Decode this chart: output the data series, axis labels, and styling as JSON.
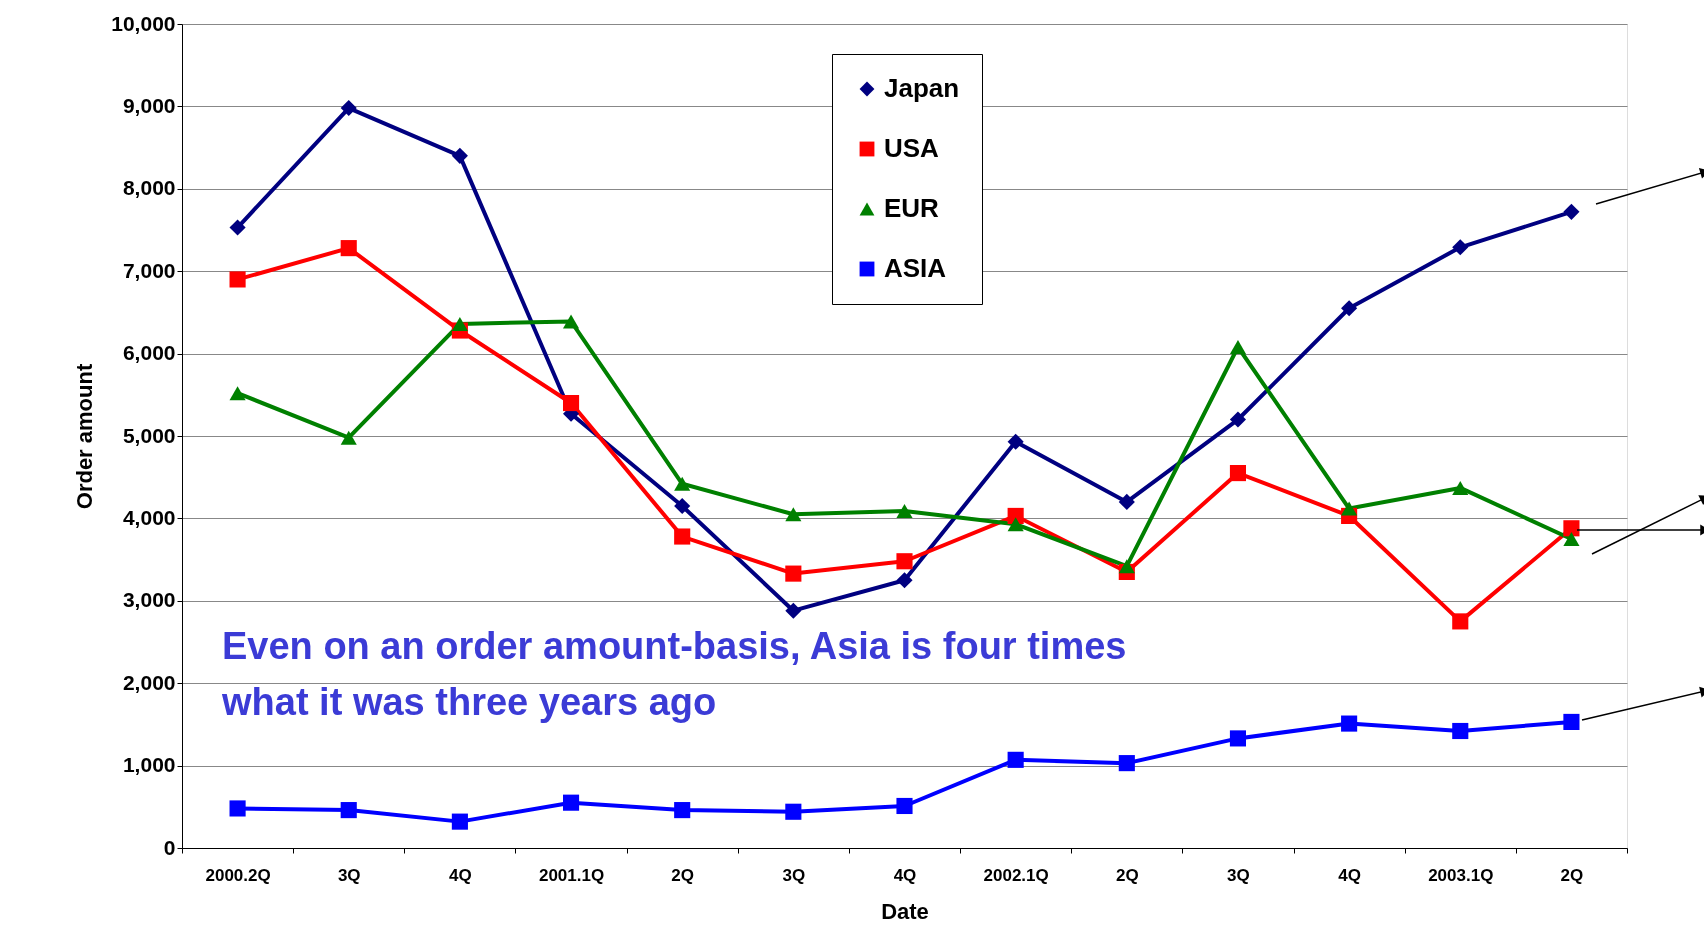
{
  "chart_data": {
    "type": "line",
    "xlabel": "Date",
    "ylabel": "Order amount",
    "categories": [
      "2000.2Q",
      "3Q",
      "4Q",
      "2001.1Q",
      "2Q",
      "3Q",
      "4Q",
      "2002.1Q",
      "2Q",
      "3Q",
      "4Q",
      "2003.1Q",
      "2Q"
    ],
    "series": [
      {
        "name": "Japan",
        "color": "#000080",
        "marker": "diamond",
        "values": [
          7530,
          8980,
          8400,
          5270,
          4150,
          2880,
          3250,
          4930,
          4200,
          5200,
          6550,
          7290,
          7720
        ]
      },
      {
        "name": "USA",
        "color": "#ff0000",
        "marker": "square",
        "values": [
          6900,
          7280,
          6280,
          5400,
          3780,
          3330,
          3480,
          4030,
          3350,
          4550,
          4030,
          2750,
          3880
        ]
      },
      {
        "name": "EUR",
        "color": "#008000",
        "marker": "triangle",
        "values": [
          5520,
          4980,
          6360,
          6390,
          4420,
          4050,
          4090,
          3930,
          3420,
          6080,
          4120,
          4370,
          3750
        ]
      },
      {
        "name": "ASIA",
        "color": "#0000ff",
        "marker": "square",
        "values": [
          480,
          460,
          320,
          550,
          460,
          440,
          510,
          1070,
          1030,
          1330,
          1510,
          1420,
          1530
        ]
      }
    ],
    "ylim": [
      0,
      10000
    ],
    "yticks": [
      0,
      {
        "value": 1000,
        "label": "1,000"
      },
      {
        "value": 2000,
        "label": "2,000"
      },
      {
        "value": 3000,
        "label": "3,000"
      },
      {
        "value": 4000,
        "label": "4,000"
      },
      {
        "value": 5000,
        "label": "5,000"
      },
      {
        "value": 6000,
        "label": "6,000"
      },
      {
        "value": 7000,
        "label": "7,000"
      },
      {
        "value": 8000,
        "label": "8,000"
      },
      {
        "value": 9000,
        "label": "9,000"
      },
      {
        "value": 10000,
        "label": "10,000"
      }
    ],
    "grid": "y",
    "legend": "top",
    "line_style": "solid",
    "annotations": [
      "Even on an order amount-basis, Asia is four times\nwhat it was three years ago"
    ]
  }
}
